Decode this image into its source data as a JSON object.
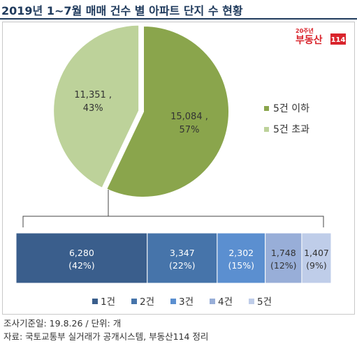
{
  "header": {
    "title": "2019년 1~7월 매매 건수 별 아파트 단지 수 현황"
  },
  "logo": {
    "top_text": "20주년",
    "brand_text": "부동산",
    "number_text": "114"
  },
  "colors": {
    "title": "#1f3a5c",
    "pie_dark": "#8aa54c",
    "pie_light": "#bdd29a",
    "bar": [
      "#3a5e8c",
      "#4674aa",
      "#5b8fd0",
      "#98aed8",
      "#bfcde9"
    ],
    "logo_red": "#d9242c"
  },
  "chart_data": [
    {
      "type": "pie",
      "slices": [
        {
          "name": "5건 이하",
          "value": 15084,
          "label_value": "15,084 ,",
          "label_pct": "57%"
        },
        {
          "name": "5건 초과",
          "value": 11351,
          "label_value": "11,351 ,",
          "label_pct": "43%"
        }
      ],
      "legend": [
        "5건 이하",
        "5건 초과"
      ],
      "legend_position": "right"
    },
    {
      "type": "bar",
      "orientation": "horizontal-stacked",
      "categories": [
        "1건",
        "2건",
        "3건",
        "4건",
        "5건"
      ],
      "values": [
        6280,
        3347,
        2302,
        1748,
        1407
      ],
      "labels": [
        "6,280",
        "3,347",
        "2,302",
        "1,748",
        "1,407"
      ],
      "percent_labels": [
        "(42%)",
        "(22%)",
        "(15%)",
        "(12%)",
        "(9%)"
      ],
      "legend_position": "bottom"
    }
  ],
  "footer": {
    "line1": "조사기준일: 19.8.26 / 단위: 개",
    "line2": "자료: 국토교통부 실거래가 공개시스템, 부동산114 정리"
  }
}
